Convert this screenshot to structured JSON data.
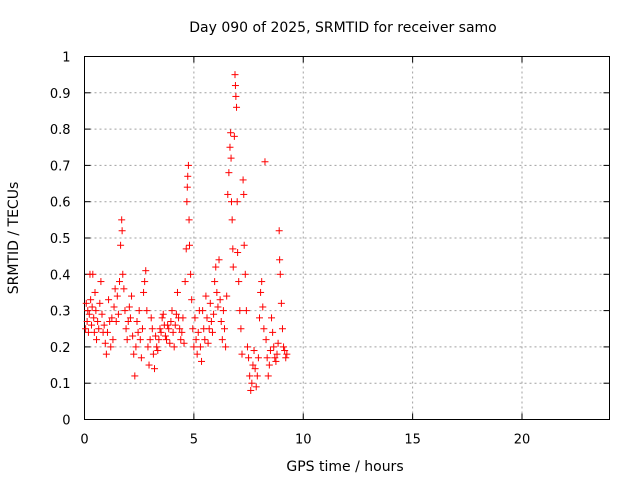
{
  "chart_data": {
    "type": "scatter",
    "title": "Day 090 of 2025, SRMTID for receiver samo",
    "xlabel": "GPS time / hours",
    "ylabel": "SRMTID / TECUs",
    "xlim": [
      0,
      24
    ],
    "ylim": [
      0,
      1
    ],
    "grid": true,
    "x_ticks": [
      0,
      5,
      10,
      15,
      20
    ],
    "x_tick_labels": [
      "0",
      "5",
      "10",
      "15",
      "20"
    ],
    "y_ticks": [
      0,
      0.1,
      0.2,
      0.3,
      0.4,
      0.5,
      0.6,
      0.7,
      0.8,
      0.9,
      1
    ],
    "y_tick_labels": [
      "0",
      "0.1",
      "0.2",
      "0.3",
      "0.4",
      "0.5",
      "0.6",
      "0.7",
      "0.8",
      "0.9",
      "1"
    ],
    "marker": "+",
    "marker_color": "#ff0000",
    "series": [
      {
        "name": "SRMTID",
        "points": [
          [
            0.05,
            0.25
          ],
          [
            0.08,
            0.32
          ],
          [
            0.12,
            0.27
          ],
          [
            0.15,
            0.3
          ],
          [
            0.18,
            0.24
          ],
          [
            0.22,
            0.29
          ],
          [
            0.25,
            0.4
          ],
          [
            0.28,
            0.33
          ],
          [
            0.32,
            0.26
          ],
          [
            0.35,
            0.31
          ],
          [
            0.38,
            0.4
          ],
          [
            0.42,
            0.28
          ],
          [
            0.45,
            0.24
          ],
          [
            0.48,
            0.35
          ],
          [
            0.52,
            0.3
          ],
          [
            0.55,
            0.22
          ],
          [
            0.6,
            0.27
          ],
          [
            0.65,
            0.25
          ],
          [
            0.7,
            0.32
          ],
          [
            0.75,
            0.38
          ],
          [
            0.8,
            0.29
          ],
          [
            0.85,
            0.24
          ],
          [
            0.9,
            0.26
          ],
          [
            0.95,
            0.21
          ],
          [
            1.0,
            0.18
          ],
          [
            1.05,
            0.24
          ],
          [
            1.1,
            0.33
          ],
          [
            1.15,
            0.27
          ],
          [
            1.2,
            0.2
          ],
          [
            1.25,
            0.28
          ],
          [
            1.3,
            0.22
          ],
          [
            1.35,
            0.31
          ],
          [
            1.4,
            0.36
          ],
          [
            1.45,
            0.27
          ],
          [
            1.5,
            0.34
          ],
          [
            1.55,
            0.29
          ],
          [
            1.6,
            0.38
          ],
          [
            1.65,
            0.48
          ],
          [
            1.7,
            0.55
          ],
          [
            1.72,
            0.52
          ],
          [
            1.75,
            0.4
          ],
          [
            1.8,
            0.36
          ],
          [
            1.85,
            0.3
          ],
          [
            1.9,
            0.25
          ],
          [
            1.95,
            0.22
          ],
          [
            2.0,
            0.27
          ],
          [
            2.05,
            0.31
          ],
          [
            2.1,
            0.28
          ],
          [
            2.15,
            0.34
          ],
          [
            2.2,
            0.23
          ],
          [
            2.25,
            0.18
          ],
          [
            2.3,
            0.12
          ],
          [
            2.35,
            0.2
          ],
          [
            2.4,
            0.27
          ],
          [
            2.45,
            0.24
          ],
          [
            2.5,
            0.3
          ],
          [
            2.55,
            0.22
          ],
          [
            2.6,
            0.17
          ],
          [
            2.65,
            0.25
          ],
          [
            2.7,
            0.35
          ],
          [
            2.75,
            0.38
          ],
          [
            2.8,
            0.41
          ],
          [
            2.85,
            0.3
          ],
          [
            2.9,
            0.2
          ],
          [
            2.95,
            0.15
          ],
          [
            3.0,
            0.22
          ],
          [
            3.05,
            0.28
          ],
          [
            3.1,
            0.25
          ],
          [
            3.15,
            0.18
          ],
          [
            3.2,
            0.14
          ],
          [
            3.25,
            0.23
          ],
          [
            3.3,
            0.2
          ],
          [
            3.35,
            0.19
          ],
          [
            3.4,
            0.22
          ],
          [
            3.45,
            0.25
          ],
          [
            3.5,
            0.24
          ],
          [
            3.55,
            0.28
          ],
          [
            3.6,
            0.29
          ],
          [
            3.65,
            0.26
          ],
          [
            3.7,
            0.23
          ],
          [
            3.75,
            0.22
          ],
          [
            3.8,
            0.26
          ],
          [
            3.85,
            0.25
          ],
          [
            3.9,
            0.21
          ],
          [
            3.95,
            0.27
          ],
          [
            4.0,
            0.3
          ],
          [
            4.05,
            0.24
          ],
          [
            4.1,
            0.2
          ],
          [
            4.15,
            0.26
          ],
          [
            4.2,
            0.29
          ],
          [
            4.25,
            0.35
          ],
          [
            4.3,
            0.28
          ],
          [
            4.35,
            0.25
          ],
          [
            4.4,
            0.22
          ],
          [
            4.45,
            0.24
          ],
          [
            4.5,
            0.28
          ],
          [
            4.55,
            0.21
          ],
          [
            4.6,
            0.38
          ],
          [
            4.65,
            0.47
          ],
          [
            4.68,
            0.6
          ],
          [
            4.7,
            0.64
          ],
          [
            4.72,
            0.67
          ],
          [
            4.75,
            0.7
          ],
          [
            4.78,
            0.55
          ],
          [
            4.8,
            0.48
          ],
          [
            4.85,
            0.4
          ],
          [
            4.9,
            0.33
          ],
          [
            4.95,
            0.25
          ],
          [
            5.0,
            0.2
          ],
          [
            5.05,
            0.28
          ],
          [
            5.1,
            0.22
          ],
          [
            5.15,
            0.18
          ],
          [
            5.2,
            0.24
          ],
          [
            5.25,
            0.3
          ],
          [
            5.3,
            0.2
          ],
          [
            5.35,
            0.16
          ],
          [
            5.4,
            0.3
          ],
          [
            5.45,
            0.25
          ],
          [
            5.5,
            0.22
          ],
          [
            5.55,
            0.34
          ],
          [
            5.6,
            0.28
          ],
          [
            5.65,
            0.21
          ],
          [
            5.7,
            0.25
          ],
          [
            5.75,
            0.32
          ],
          [
            5.8,
            0.27
          ],
          [
            5.85,
            0.24
          ],
          [
            5.9,
            0.29
          ],
          [
            5.95,
            0.38
          ],
          [
            6.0,
            0.42
          ],
          [
            6.05,
            0.35
          ],
          [
            6.1,
            0.31
          ],
          [
            6.15,
            0.44
          ],
          [
            6.2,
            0.33
          ],
          [
            6.25,
            0.27
          ],
          [
            6.3,
            0.22
          ],
          [
            6.35,
            0.3
          ],
          [
            6.4,
            0.25
          ],
          [
            6.45,
            0.2
          ],
          [
            6.5,
            0.34
          ],
          [
            6.55,
            0.62
          ],
          [
            6.6,
            0.68
          ],
          [
            6.65,
            0.75
          ],
          [
            6.68,
            0.79
          ],
          [
            6.7,
            0.72
          ],
          [
            6.72,
            0.6
          ],
          [
            6.75,
            0.55
          ],
          [
            6.78,
            0.47
          ],
          [
            6.8,
            0.42
          ],
          [
            6.85,
            0.78
          ],
          [
            6.88,
            0.95
          ],
          [
            6.9,
            0.92
          ],
          [
            6.92,
            0.89
          ],
          [
            6.95,
            0.86
          ],
          [
            6.98,
            0.6
          ],
          [
            7.0,
            0.46
          ],
          [
            7.05,
            0.38
          ],
          [
            7.1,
            0.3
          ],
          [
            7.15,
            0.25
          ],
          [
            7.2,
            0.18
          ],
          [
            7.25,
            0.66
          ],
          [
            7.28,
            0.62
          ],
          [
            7.3,
            0.48
          ],
          [
            7.35,
            0.4
          ],
          [
            7.4,
            0.3
          ],
          [
            7.45,
            0.2
          ],
          [
            7.5,
            0.17
          ],
          [
            7.55,
            0.12
          ],
          [
            7.6,
            0.08
          ],
          [
            7.65,
            0.1
          ],
          [
            7.7,
            0.15
          ],
          [
            7.75,
            0.19
          ],
          [
            7.8,
            0.14
          ],
          [
            7.85,
            0.09
          ],
          [
            7.9,
            0.12
          ],
          [
            7.95,
            0.17
          ],
          [
            8.0,
            0.28
          ],
          [
            8.05,
            0.35
          ],
          [
            8.1,
            0.38
          ],
          [
            8.15,
            0.31
          ],
          [
            8.2,
            0.25
          ],
          [
            8.25,
            0.71
          ],
          [
            8.3,
            0.22
          ],
          [
            8.35,
            0.17
          ],
          [
            8.4,
            0.12
          ],
          [
            8.45,
            0.15
          ],
          [
            8.5,
            0.19
          ],
          [
            8.55,
            0.28
          ],
          [
            8.6,
            0.24
          ],
          [
            8.65,
            0.2
          ],
          [
            8.7,
            0.17
          ],
          [
            8.75,
            0.16
          ],
          [
            8.8,
            0.18
          ],
          [
            8.85,
            0.21
          ],
          [
            8.9,
            0.52
          ],
          [
            8.92,
            0.44
          ],
          [
            8.95,
            0.4
          ],
          [
            9.0,
            0.32
          ],
          [
            9.05,
            0.25
          ],
          [
            9.1,
            0.2
          ],
          [
            9.15,
            0.19
          ],
          [
            9.2,
            0.17
          ],
          [
            9.25,
            0.18
          ]
        ]
      }
    ]
  }
}
